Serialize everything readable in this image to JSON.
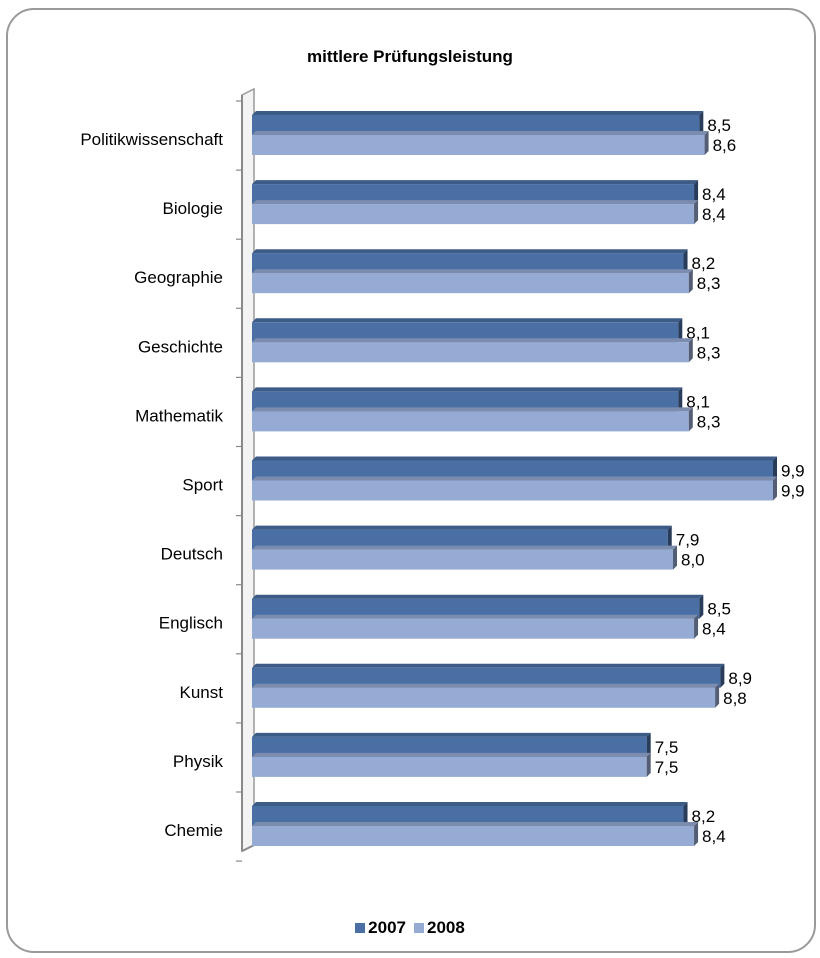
{
  "chart_data": {
    "type": "bar",
    "orientation": "horizontal",
    "title": "mittlere Prüfungsleistung",
    "categories": [
      "Politikwissenschaft",
      "Biologie",
      "Geographie",
      "Geschichte",
      "Mathematik",
      "Sport",
      "Deutsch",
      "Englisch",
      "Kunst",
      "Physik",
      "Chemie"
    ],
    "series": [
      {
        "name": "2007",
        "color": "#4a6fa5",
        "values": [
          8.5,
          8.4,
          8.2,
          8.1,
          8.1,
          9.9,
          7.9,
          8.5,
          8.9,
          7.5,
          8.2
        ],
        "labels": [
          "8,5",
          "8,4",
          "8,2",
          "8,1",
          "8,1",
          "9,9",
          "7,9",
          "8,5",
          "8,9",
          "7,5",
          "8,2"
        ]
      },
      {
        "name": "2008",
        "color": "#96abd4",
        "values": [
          8.6,
          8.4,
          8.3,
          8.3,
          8.3,
          9.9,
          8.0,
          8.4,
          8.8,
          7.5,
          8.4
        ],
        "labels": [
          "8,6",
          "8,4",
          "8,3",
          "8,3",
          "8,3",
          "9,9",
          "8,0",
          "8,4",
          "8,8",
          "7,5",
          "8,4"
        ]
      }
    ],
    "xlim": [
      0,
      9.9
    ],
    "grid": false,
    "legend_position": "bottom"
  }
}
